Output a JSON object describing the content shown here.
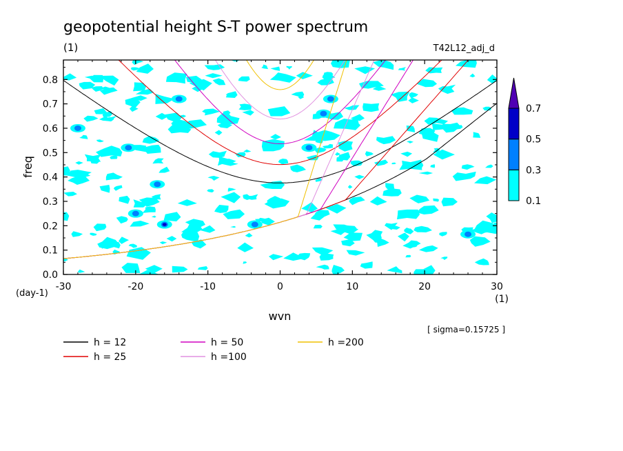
{
  "chart_data": {
    "type": "heatmap",
    "title": "geopotential height S-T power spectrum",
    "title_unit": "(1)",
    "run_label": "T42L12_adj_d",
    "xlabel": "wvn",
    "x_unit": "(1)",
    "ylabel": "freq",
    "y_unit": "(day-1)",
    "xlim": [
      -30,
      30
    ],
    "ylim": [
      0,
      0.88
    ],
    "x_ticks": [
      -30,
      -20,
      -10,
      0,
      10,
      20,
      30
    ],
    "x_tick_labels": [
      "-30",
      "-20",
      "-10",
      "0",
      "10",
      "20",
      "30"
    ],
    "y_ticks": [
      0.0,
      0.1,
      0.2,
      0.3,
      0.4,
      0.5,
      0.6,
      0.7,
      0.8
    ],
    "y_tick_labels": [
      "0.0",
      "0.1",
      "0.2",
      "0.3",
      "0.4",
      "0.5",
      "0.6",
      "0.7",
      "0.8"
    ],
    "sigma_label": "[ sigma=0.15725 ]",
    "colorbar": {
      "levels": [
        0.1,
        0.3,
        0.5,
        0.7
      ],
      "level_labels": [
        "0.1",
        "0.3",
        "0.5",
        "0.7"
      ],
      "colors": [
        "#00ffff",
        "#0080ff",
        "#0000c8",
        "#5000b4"
      ]
    },
    "field_note_levels": [
      0.1,
      0.3,
      0.5
    ],
    "blobs": [
      {
        "x": -16,
        "y": 0.205,
        "level": 3
      },
      {
        "x": 6,
        "y": 0.66,
        "level": 2
      },
      {
        "x": -21,
        "y": 0.52,
        "level": 2
      },
      {
        "x": 4,
        "y": 0.52,
        "level": 2
      },
      {
        "x": -3.5,
        "y": 0.205,
        "level": 2
      },
      {
        "x": 26,
        "y": 0.165,
        "level": 2
      },
      {
        "x": -14,
        "y": 0.72,
        "level": 2
      },
      {
        "x": 7,
        "y": 0.72,
        "level": 2
      },
      {
        "x": -28,
        "y": 0.6,
        "level": 2
      },
      {
        "x": -17,
        "y": 0.37,
        "level": 2
      },
      {
        "x": -20,
        "y": 0.25,
        "level": 2
      }
    ],
    "series": [
      {
        "name": "h = 12",
        "h": 12,
        "color": "#000000"
      },
      {
        "name": "h = 25",
        "h": 25,
        "color": "#e00000"
      },
      {
        "name": "h = 50",
        "h": 50,
        "color": "#d000c0"
      },
      {
        "name": "h =100",
        "h": 100,
        "color": "#e090e0"
      },
      {
        "name": "h =200",
        "h": 200,
        "color": "#f0c000"
      }
    ]
  }
}
